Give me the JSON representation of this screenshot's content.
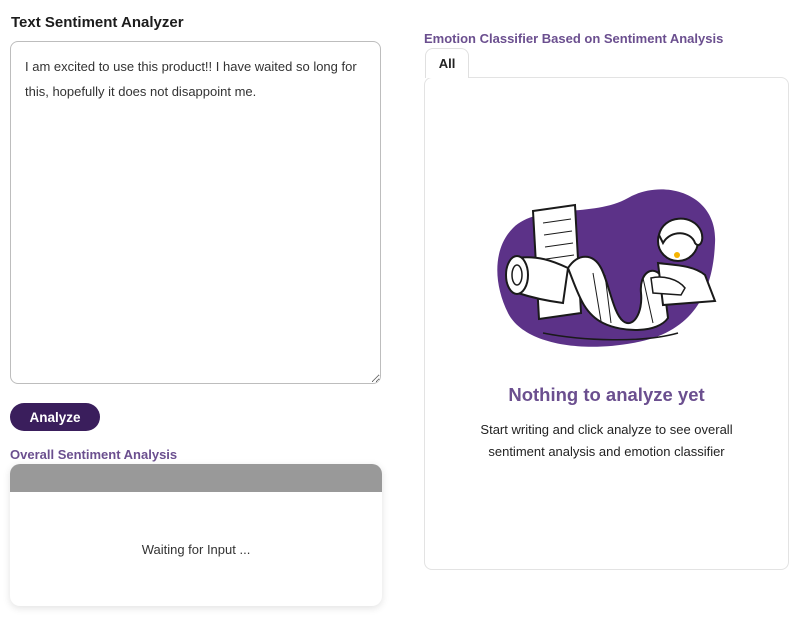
{
  "app": {
    "title": "Text Sentiment Analyzer"
  },
  "input": {
    "value": "I am excited to use this product!! I have waited so long for this, hopefully it does not disappoint me."
  },
  "actions": {
    "analyze_label": "Analyze"
  },
  "overall": {
    "title": "Overall Sentiment Analysis",
    "header_color": "#999999",
    "status_text": "Waiting for Input ..."
  },
  "emotion": {
    "title": "Emotion Classifier Based on Sentiment Analysis",
    "tabs": [
      {
        "label": "All",
        "active": true
      }
    ],
    "illustration_icon": "person-reading-scroll-illustration",
    "empty_title": "Nothing to analyze yet",
    "empty_line1": "Start writing and click analyze to see overall",
    "empty_line2": "sentiment analysis and emotion classifier"
  },
  "colors": {
    "accent": "#3a1e5c",
    "heading": "#6b4f8f",
    "blob": "#5c3288"
  }
}
